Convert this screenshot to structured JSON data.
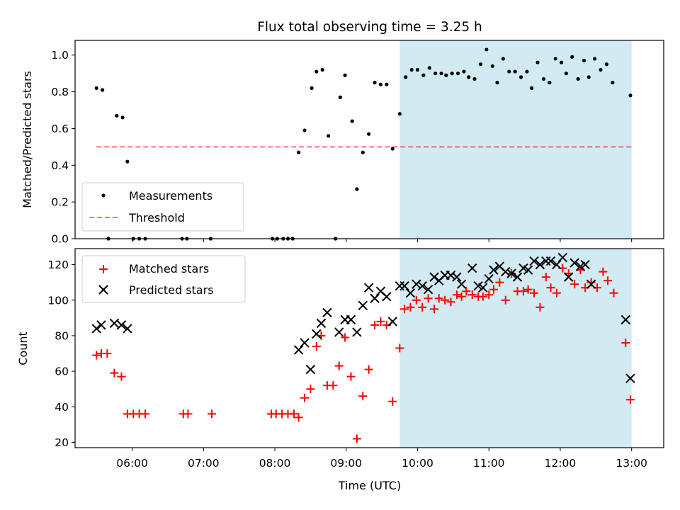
{
  "figure_title": "Flux total observing time = 3.25 h",
  "colors": {
    "shade": "#add8e6",
    "threshold": "#ff0000",
    "matched": "#ff0000",
    "predicted": "#000000",
    "measurement": "#000000"
  },
  "chart_data": [
    {
      "type": "scatter",
      "title": "Flux total observing time = 3.25 h",
      "xlabel": "",
      "ylabel": "Matched/Predicted stars",
      "xlim": [
        "05:12",
        "13:27"
      ],
      "ylim": [
        0.0,
        1.08
      ],
      "y_ticks": [
        0.0,
        0.2,
        0.4,
        0.6,
        0.8,
        1.0
      ],
      "y_tick_labels": [
        "0.0",
        "0.2",
        "0.4",
        "0.6",
        "0.8",
        "1.0"
      ],
      "grid": false,
      "legend_position": "lower-left",
      "shaded_region": {
        "x_start": "09:45",
        "x_end": "13:00"
      },
      "threshold": {
        "name": "Threshold",
        "y": 0.5,
        "x_start": "05:30",
        "x_end": "13:00",
        "style": "dashed"
      },
      "series": [
        {
          "name": "Measurements",
          "marker": "dot",
          "points": [
            [
              "05:30",
              0.82
            ],
            [
              "05:35",
              0.81
            ],
            [
              "05:40",
              0.0
            ],
            [
              "05:47",
              0.67
            ],
            [
              "05:52",
              0.66
            ],
            [
              "05:56",
              0.42
            ],
            [
              "06:01",
              0.0
            ],
            [
              "06:06",
              0.0
            ],
            [
              "06:11",
              0.0
            ],
            [
              "06:42",
              0.0
            ],
            [
              "06:46",
              0.0
            ],
            [
              "07:06",
              0.0
            ],
            [
              "07:58",
              0.0
            ],
            [
              "08:02",
              0.0
            ],
            [
              "08:07",
              0.0
            ],
            [
              "08:11",
              0.0
            ],
            [
              "08:15",
              0.0
            ],
            [
              "08:20",
              0.47
            ],
            [
              "08:25",
              0.59
            ],
            [
              "08:31",
              0.82
            ],
            [
              "08:35",
              0.91
            ],
            [
              "08:40",
              0.92
            ],
            [
              "08:45",
              0.56
            ],
            [
              "08:51",
              0.0
            ],
            [
              "08:55",
              0.77
            ],
            [
              "08:59",
              0.89
            ],
            [
              "09:05",
              0.64
            ],
            [
              "09:09",
              0.27
            ],
            [
              "09:14",
              0.47
            ],
            [
              "09:19",
              0.57
            ],
            [
              "09:24",
              0.85
            ],
            [
              "09:29",
              0.84
            ],
            [
              "09:34",
              0.84
            ],
            [
              "09:39",
              0.49
            ],
            [
              "09:45",
              0.68
            ],
            [
              "09:50",
              0.88
            ],
            [
              "09:55",
              0.92
            ],
            [
              "10:00",
              0.92
            ],
            [
              "10:05",
              0.89
            ],
            [
              "10:10",
              0.93
            ],
            [
              "10:15",
              0.9
            ],
            [
              "10:20",
              0.9
            ],
            [
              "10:24",
              0.89
            ],
            [
              "10:29",
              0.9
            ],
            [
              "10:34",
              0.9
            ],
            [
              "10:39",
              0.91
            ],
            [
              "10:43",
              0.88
            ],
            [
              "10:48",
              0.87
            ],
            [
              "10:53",
              0.95
            ],
            [
              "10:58",
              1.03
            ],
            [
              "11:03",
              0.94
            ],
            [
              "11:07",
              0.85
            ],
            [
              "11:12",
              0.98
            ],
            [
              "11:17",
              0.91
            ],
            [
              "11:22",
              0.91
            ],
            [
              "11:27",
              0.88
            ],
            [
              "11:32",
              0.91
            ],
            [
              "11:36",
              0.82
            ],
            [
              "11:41",
              0.96
            ],
            [
              "11:46",
              0.87
            ],
            [
              "11:51",
              0.85
            ],
            [
              "11:56",
              0.98
            ],
            [
              "12:01",
              0.96
            ],
            [
              "12:05",
              0.9
            ],
            [
              "12:10",
              0.99
            ],
            [
              "12:15",
              0.87
            ],
            [
              "12:20",
              0.97
            ],
            [
              "12:24",
              0.88
            ],
            [
              "12:29",
              0.98
            ],
            [
              "12:34",
              0.92
            ],
            [
              "12:39",
              0.95
            ],
            [
              "12:44",
              0.85
            ],
            [
              "12:59",
              0.78
            ]
          ]
        }
      ]
    },
    {
      "type": "scatter",
      "title": "",
      "xlabel": "Time (UTC)",
      "ylabel": "Count",
      "xlim": [
        "05:12",
        "13:27"
      ],
      "x_ticks": [
        "06:00",
        "07:00",
        "08:00",
        "09:00",
        "10:00",
        "11:00",
        "12:00",
        "13:00"
      ],
      "ylim": [
        17,
        129
      ],
      "y_ticks": [
        20,
        40,
        60,
        80,
        100,
        120
      ],
      "y_tick_labels": [
        "20",
        "40",
        "60",
        "80",
        "100",
        "120"
      ],
      "grid": false,
      "legend_position": "upper-left",
      "shaded_region": {
        "x_start": "09:45",
        "x_end": "13:00"
      },
      "series": [
        {
          "name": "Matched stars",
          "marker": "plus",
          "points": [
            [
              "05:30",
              69
            ],
            [
              "05:34",
              70
            ],
            [
              "05:39",
              70
            ],
            [
              "05:45",
              59
            ],
            [
              "05:51",
              57
            ],
            [
              "05:56",
              36
            ],
            [
              "06:01",
              36
            ],
            [
              "06:06",
              36
            ],
            [
              "06:11",
              36
            ],
            [
              "06:43",
              36
            ],
            [
              "06:47",
              36
            ],
            [
              "07:07",
              36
            ],
            [
              "07:57",
              36
            ],
            [
              "08:01",
              36
            ],
            [
              "08:06",
              36
            ],
            [
              "08:11",
              36
            ],
            [
              "08:16",
              36
            ],
            [
              "08:20",
              34
            ],
            [
              "08:25",
              45
            ],
            [
              "08:30",
              50
            ],
            [
              "08:35",
              74
            ],
            [
              "08:39",
              80
            ],
            [
              "08:44",
              52
            ],
            [
              "08:49",
              52
            ],
            [
              "08:54",
              63
            ],
            [
              "08:59",
              79
            ],
            [
              "09:04",
              57
            ],
            [
              "09:09",
              22
            ],
            [
              "09:14",
              46
            ],
            [
              "09:19",
              61
            ],
            [
              "09:24",
              86
            ],
            [
              "09:29",
              88
            ],
            [
              "09:34",
              86
            ],
            [
              "09:39",
              43
            ],
            [
              "09:45",
              73
            ],
            [
              "09:49",
              95
            ],
            [
              "09:54",
              96
            ],
            [
              "09:59",
              100
            ],
            [
              "10:04",
              96
            ],
            [
              "10:09",
              101
            ],
            [
              "10:14",
              95
            ],
            [
              "10:18",
              101
            ],
            [
              "10:23",
              100
            ],
            [
              "10:28",
              99
            ],
            [
              "10:33",
              103
            ],
            [
              "10:37",
              102
            ],
            [
              "10:41",
              105
            ],
            [
              "10:46",
              103
            ],
            [
              "10:51",
              102
            ],
            [
              "10:55",
              102
            ],
            [
              "11:00",
              103
            ],
            [
              "11:04",
              106
            ],
            [
              "11:09",
              110
            ],
            [
              "11:14",
              100
            ],
            [
              "11:19",
              115
            ],
            [
              "11:24",
              105
            ],
            [
              "11:29",
              105
            ],
            [
              "11:33",
              106
            ],
            [
              "11:38",
              104
            ],
            [
              "11:43",
              96
            ],
            [
              "11:48",
              113
            ],
            [
              "11:52",
              107
            ],
            [
              "11:57",
              104
            ],
            [
              "12:02",
              118
            ],
            [
              "12:07",
              115
            ],
            [
              "12:12",
              109
            ],
            [
              "12:17",
              117
            ],
            [
              "12:21",
              107
            ],
            [
              "12:26",
              110
            ],
            [
              "12:31",
              107
            ],
            [
              "12:36",
              116
            ],
            [
              "12:40",
              111
            ],
            [
              "12:45",
              104
            ],
            [
              "12:55",
              76
            ],
            [
              "12:59",
              44
            ]
          ]
        },
        {
          "name": "Predicted stars",
          "marker": "x",
          "points": [
            [
              "05:30",
              84
            ],
            [
              "05:34",
              86
            ],
            [
              "05:45",
              87
            ],
            [
              "05:51",
              86
            ],
            [
              "05:56",
              84
            ],
            [
              "08:20",
              72
            ],
            [
              "08:25",
              76
            ],
            [
              "08:30",
              61
            ],
            [
              "08:35",
              81
            ],
            [
              "08:39",
              87
            ],
            [
              "08:44",
              93
            ],
            [
              "08:54",
              82
            ],
            [
              "08:59",
              89
            ],
            [
              "09:04",
              89
            ],
            [
              "09:09",
              82
            ],
            [
              "09:14",
              97
            ],
            [
              "09:19",
              107
            ],
            [
              "09:24",
              101
            ],
            [
              "09:29",
              105
            ],
            [
              "09:34",
              102
            ],
            [
              "09:39",
              88
            ],
            [
              "09:45",
              108
            ],
            [
              "09:49",
              108
            ],
            [
              "09:54",
              104
            ],
            [
              "09:59",
              109
            ],
            [
              "10:04",
              108
            ],
            [
              "10:09",
              106
            ],
            [
              "10:14",
              113
            ],
            [
              "10:18",
              111
            ],
            [
              "10:23",
              114
            ],
            [
              "10:28",
              114
            ],
            [
              "10:33",
              113
            ],
            [
              "10:37",
              109
            ],
            [
              "10:46",
              118
            ],
            [
              "10:51",
              108
            ],
            [
              "10:55",
              107
            ],
            [
              "11:00",
              112
            ],
            [
              "11:04",
              117
            ],
            [
              "11:09",
              119
            ],
            [
              "11:14",
              116
            ],
            [
              "11:19",
              115
            ],
            [
              "11:24",
              113
            ],
            [
              "11:29",
              118
            ],
            [
              "11:33",
              117
            ],
            [
              "11:38",
              122
            ],
            [
              "11:43",
              120
            ],
            [
              "11:48",
              122
            ],
            [
              "11:52",
              122
            ],
            [
              "11:57",
              120
            ],
            [
              "12:02",
              124
            ],
            [
              "12:07",
              113
            ],
            [
              "12:12",
              121
            ],
            [
              "12:17",
              119
            ],
            [
              "12:21",
              120
            ],
            [
              "12:26",
              109
            ],
            [
              "12:55",
              89
            ],
            [
              "12:59",
              56
            ]
          ]
        }
      ]
    }
  ]
}
